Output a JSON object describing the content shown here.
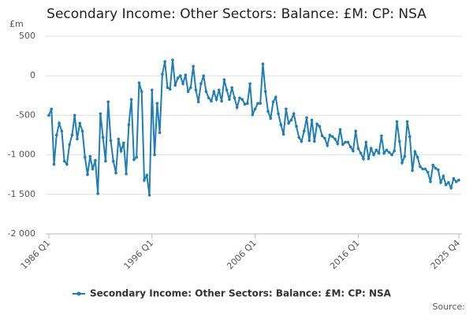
{
  "chart_data": {
    "type": "line",
    "title": "Secondary Income: Other Sectors: Balance: £M: CP: NSA",
    "y_unit": "£m",
    "source": "Source:",
    "categories": [
      "1986 Q1",
      null,
      null,
      null,
      null,
      null,
      null,
      null,
      null,
      null,
      null,
      null,
      null,
      null,
      null,
      null,
      null,
      null,
      null,
      null,
      null,
      null,
      null,
      null,
      null,
      null,
      null,
      null,
      null,
      null,
      null,
      null,
      null,
      null,
      null,
      null,
      null,
      null,
      null,
      null,
      "1996 Q1",
      null,
      null,
      null,
      null,
      null,
      null,
      null,
      null,
      null,
      null,
      null,
      null,
      null,
      null,
      null,
      null,
      null,
      null,
      null,
      null,
      null,
      null,
      null,
      null,
      null,
      null,
      null,
      null,
      null,
      null,
      null,
      null,
      null,
      null,
      null,
      null,
      null,
      null,
      null,
      "2006 Q1",
      null,
      null,
      null,
      null,
      null,
      null,
      null,
      null,
      null,
      null,
      null,
      null,
      null,
      null,
      null,
      null,
      null,
      null,
      null,
      null,
      null,
      null,
      null,
      null,
      null,
      null,
      null,
      null,
      null,
      null,
      null,
      null,
      null,
      null,
      null,
      null,
      null,
      null,
      null,
      "2016 Q1",
      null,
      null,
      null,
      null,
      null,
      null,
      null,
      null,
      null,
      null,
      null,
      null,
      null,
      null,
      null,
      null,
      null,
      null,
      null,
      null,
      null,
      null,
      null,
      null,
      null,
      null,
      null,
      null,
      null,
      null,
      null,
      null,
      null,
      null,
      null,
      null,
      null,
      null,
      "2025 Q4"
    ],
    "series": [
      {
        "name": "Secondary Income: Other Sectors: Balance: £M: CP: NSA",
        "color": "#1f7eb4",
        "values": [
          -500,
          -420,
          -1120,
          -750,
          -600,
          -700,
          -1080,
          -1120,
          -870,
          -750,
          -500,
          -800,
          -600,
          -700,
          -1030,
          -1250,
          -1020,
          -1180,
          -1070,
          -1490,
          -480,
          -780,
          -1080,
          -330,
          -820,
          -1080,
          -1230,
          -800,
          -950,
          -850,
          -1240,
          -620,
          -300,
          -1060,
          -1030,
          -90,
          -200,
          -1320,
          -1260,
          -1510,
          -180,
          -1000,
          -350,
          -720,
          20,
          180,
          -150,
          -170,
          200,
          -120,
          -30,
          0,
          -100,
          10,
          -200,
          -150,
          120,
          -180,
          -330,
          -100,
          0,
          -200,
          -280,
          -320,
          -200,
          -300,
          -180,
          -320,
          -50,
          -180,
          -300,
          -150,
          -280,
          -400,
          -280,
          -300,
          -360,
          -350,
          -100,
          -490,
          -420,
          -350,
          -350,
          150,
          -200,
          -450,
          -540,
          -330,
          -270,
          -480,
          -620,
          -740,
          -420,
          -600,
          -560,
          -480,
          -640,
          -780,
          -830,
          -700,
          -530,
          -820,
          -560,
          -830,
          -610,
          -640,
          -760,
          -790,
          -880,
          -750,
          -770,
          -800,
          -860,
          -680,
          -870,
          -840,
          -840,
          -900,
          -950,
          -700,
          -920,
          -980,
          -1050,
          -840,
          -1050,
          -920,
          -1000,
          -940,
          -980,
          -760,
          -980,
          -940,
          -970,
          -1000,
          -950,
          -580,
          -830,
          -1100,
          -1020,
          -580,
          -770,
          -1200,
          -960,
          -1030,
          -1150,
          -1180,
          -1180,
          -1220,
          -1340,
          -1130,
          -1170,
          -1190,
          -1350,
          -1270,
          -1380,
          -1350,
          -1420,
          -1300,
          -1340,
          -1320
        ]
      }
    ],
    "ylim": [
      -2000,
      500
    ],
    "yticks": [
      500,
      0,
      -500,
      {
        "value": -1000,
        "label": "-1 000"
      },
      {
        "value": -1500,
        "label": "-1 500"
      },
      {
        "value": -2000,
        "label": "-2 000"
      }
    ],
    "grid": true
  }
}
